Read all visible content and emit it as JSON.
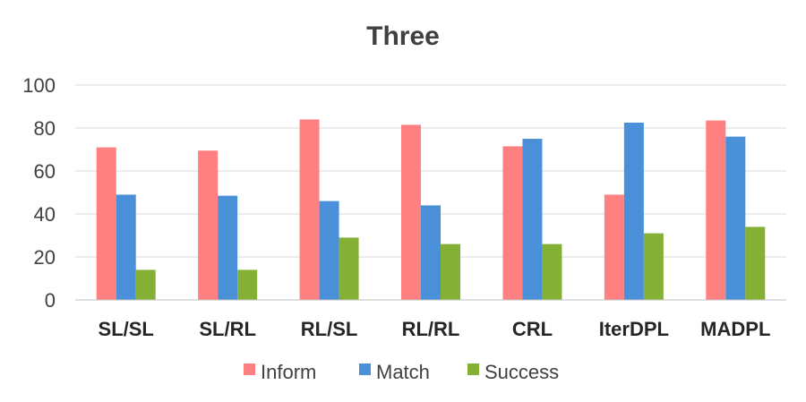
{
  "chart_data": {
    "type": "bar",
    "title": "Three",
    "categories": [
      "SL/SL",
      "SL/RL",
      "RL/SL",
      "RL/RL",
      "CRL",
      "IterDPL",
      "MADPL"
    ],
    "series": [
      {
        "name": "Inform",
        "color": "#FF8080",
        "values": [
          71,
          69.5,
          84,
          81.5,
          71.5,
          49,
          83.5
        ]
      },
      {
        "name": "Match",
        "color": "#4A90D9",
        "values": [
          49,
          48.5,
          46,
          44,
          75,
          82.5,
          76
        ]
      },
      {
        "name": "Success",
        "color": "#84B135",
        "values": [
          14,
          14,
          29,
          26,
          26,
          31,
          34
        ]
      }
    ],
    "yticks": [
      "0",
      "20",
      "40",
      "60",
      "80",
      "100"
    ],
    "ylim": [
      0,
      100
    ],
    "grid": true,
    "legend_position": "bottom"
  }
}
